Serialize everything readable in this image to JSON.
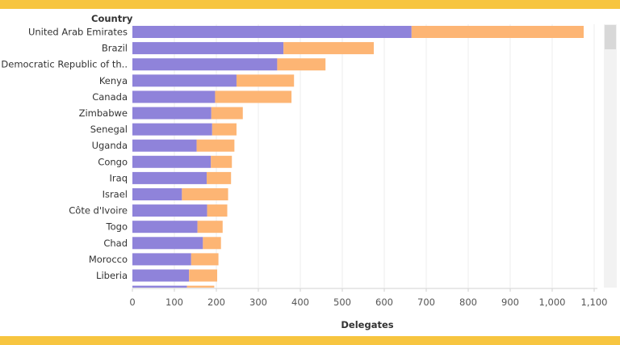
{
  "colors": {
    "band": "#F7C540",
    "series_primary": "#8F83DA",
    "series_secondary": "#FDB574",
    "gridline": "#EDEDED",
    "scrollbar_track": "#F2F2F2",
    "scrollbar_thumb": "#D8D8D8"
  },
  "chart_data": {
    "type": "bar",
    "orientation": "horizontal",
    "stacked": true,
    "row_header": "Country",
    "xlabel": "Delegates",
    "ylabel": "",
    "xlim": [
      0,
      1100
    ],
    "xticks": [
      0,
      100,
      200,
      300,
      400,
      500,
      600,
      700,
      800,
      900,
      1000,
      1100
    ],
    "xtick_labels": [
      "0",
      "100",
      "200",
      "300",
      "400",
      "500",
      "600",
      "700",
      "800",
      "900",
      "1,000",
      "1,100"
    ],
    "grid": "vertical",
    "categories": [
      "United Arab Emirates",
      "Brazil",
      "Democratic Republic of th..",
      "Kenya",
      "Canada",
      "Zimbabwe",
      "Senegal",
      "Uganda",
      "Congo",
      "Iraq",
      "Israel",
      "Côte d'Ivoire",
      "Togo",
      "Chad",
      "Morocco",
      "Liberia",
      ""
    ],
    "series": [
      {
        "values": [
          665,
          360,
          345,
          248,
          197,
          188,
          190,
          153,
          187,
          177,
          118,
          178,
          155,
          168,
          140,
          135,
          130
        ]
      },
      {
        "values": [
          410,
          215,
          115,
          137,
          182,
          75,
          58,
          90,
          50,
          58,
          110,
          48,
          60,
          43,
          65,
          67,
          65
        ]
      }
    ]
  }
}
